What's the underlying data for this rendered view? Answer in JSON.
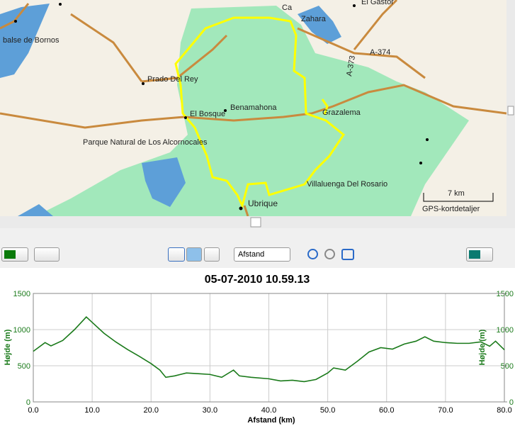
{
  "map": {
    "labels": [
      "Ca",
      "El Gastor",
      "Zahara",
      "balse de Bornos",
      "A-374",
      "A-373",
      "Prado Del Rey",
      "Benamahona",
      "El Bosque",
      "Grazalema",
      "Parque Natural de Los Alcornocales",
      "Villaluenga Del Rosario",
      "Ubrique"
    ],
    "scale": "7 km",
    "scale_caption": "GPS-kortdetaljer"
  },
  "toolbar": {
    "dropdown": "Afstand"
  },
  "chart_data": {
    "type": "line",
    "title": "05-07-2010 10.59.13",
    "x_label": "Afstand (km)",
    "y_label": "Højde (m)",
    "y2_label": "Højde (m)",
    "color": "#1a7a1a",
    "grid": true,
    "x": [
      0,
      2,
      3,
      5,
      7,
      9,
      10,
      12,
      14,
      16,
      18,
      20,
      21.5,
      22.5,
      24,
      26,
      28,
      30,
      32,
      34,
      35,
      37,
      40,
      42,
      44,
      46,
      48,
      50,
      51,
      53,
      55,
      57,
      59,
      61,
      63,
      65,
      66.5,
      68,
      70,
      72,
      74,
      76,
      77.5,
      78.5,
      80
    ],
    "values": [
      700,
      820,
      775,
      850,
      1000,
      1175,
      1100,
      950,
      830,
      725,
      630,
      530,
      440,
      340,
      360,
      400,
      390,
      380,
      340,
      440,
      360,
      340,
      320,
      290,
      300,
      280,
      310,
      400,
      470,
      440,
      560,
      690,
      750,
      730,
      800,
      840,
      900,
      840,
      820,
      810,
      810,
      830,
      770,
      840,
      720
    ],
    "xlim": [
      0,
      80
    ],
    "ylim": [
      0,
      1500
    ],
    "y2lim": [
      0,
      1500
    ],
    "xticks": [
      {
        "value": 0,
        "label": "0.0"
      },
      {
        "value": 10,
        "label": "10.0"
      },
      {
        "value": 20,
        "label": "20.0"
      },
      {
        "value": 30,
        "label": "30.0"
      },
      {
        "value": 40,
        "label": "40.0"
      },
      {
        "value": 50,
        "label": "50.0"
      },
      {
        "value": 60,
        "label": "60.0"
      },
      {
        "value": 70,
        "label": "70.0"
      },
      {
        "value": 80,
        "label": "80.0"
      }
    ],
    "yticks": [
      0,
      500,
      1000,
      1500
    ],
    "y2ticks": [
      0,
      500,
      1000,
      1500
    ]
  }
}
